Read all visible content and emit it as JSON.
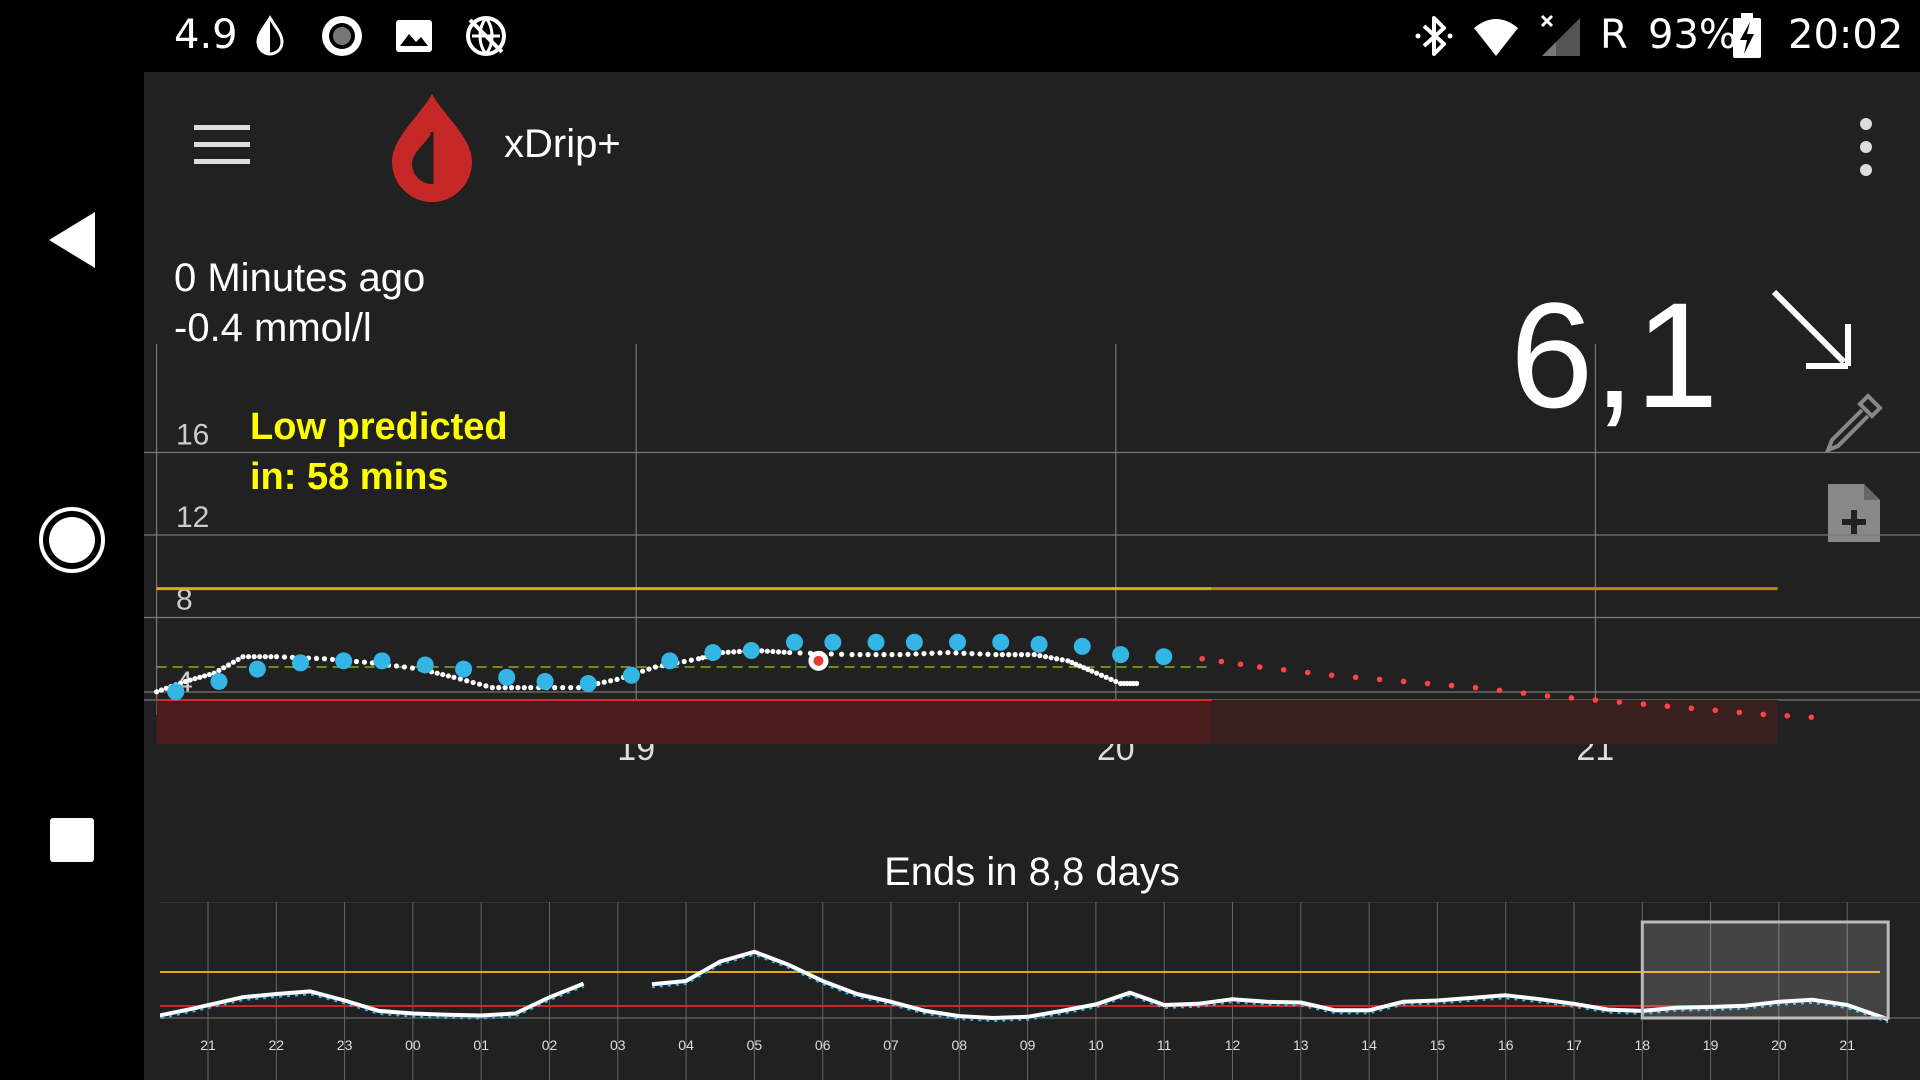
{
  "status_bar": {
    "left_value": "4.9",
    "carrier": "R",
    "battery": "93%",
    "time": "20:02",
    "icons_left": [
      "drop-half-icon",
      "record-circle-icon",
      "image-icon",
      "no-sync-icon"
    ],
    "icons_right": [
      "bluetooth-icon",
      "wifi-icon",
      "signal-icon",
      "battery-charging-icon"
    ]
  },
  "app": {
    "title": "xDrip+",
    "minutes_ago": "0 Minutes ago",
    "delta": "-0.4 mmol/l",
    "bg_value": "6,1",
    "trend": "falling",
    "low_predicted": "Low predicted\nin: 58 mins",
    "sensor_status": "Ends in 8,8 days"
  },
  "colors": {
    "background": "#212121",
    "high_line": "#e8a317",
    "low_band": "#3b1a1a",
    "bg_dots": "#33b5e5",
    "raw_dots": "#ffffff",
    "prediction": "#ff4444",
    "target_line": "#6b8e23",
    "warning_text": "#ffff00",
    "logo_red": "#c62828"
  },
  "chart_data": [
    {
      "type": "scatter",
      "name": "main-bg-chart",
      "y_ticks": [
        "16",
        "12",
        "8",
        "4"
      ],
      "x_ticks": [
        "19",
        "20",
        "21"
      ],
      "ylim": [
        2.3,
        19.5
      ],
      "xlim": [
        18.03,
        21.56
      ],
      "high_line": 9.4,
      "low_line": 4.0,
      "target_line": 5.6,
      "grid": true,
      "series": [
        {
          "kind": "bg",
          "x": [
            18.04,
            18.13,
            18.21,
            18.3,
            18.39,
            18.47,
            18.56,
            18.64,
            18.73,
            18.81,
            18.9,
            18.99,
            19.07,
            19.16,
            19.24,
            19.33,
            19.41,
            19.5,
            19.58,
            19.67,
            19.76,
            19.84,
            19.93,
            20.01,
            20.1
          ],
          "y": [
            4.4,
            4.9,
            5.5,
            5.8,
            5.9,
            5.9,
            5.7,
            5.5,
            5.1,
            4.9,
            4.8,
            5.2,
            5.9,
            6.3,
            6.4,
            6.8,
            6.8,
            6.8,
            6.8,
            6.8,
            6.8,
            6.7,
            6.6,
            6.2,
            6.1
          ]
        },
        {
          "kind": "calibration",
          "x": [
            19.38
          ],
          "y": [
            5.9
          ]
        },
        {
          "kind": "raw",
          "x": [
            18.0,
            18.06,
            18.12,
            18.18,
            18.25,
            18.35,
            18.45,
            18.55,
            18.62,
            18.7,
            18.78,
            18.88,
            18.96,
            19.04,
            19.13,
            19.18,
            19.25,
            19.32,
            19.45,
            19.55,
            19.65,
            19.75,
            19.83,
            19.9,
            19.95,
            20.01,
            20.05
          ],
          "y": [
            4.4,
            4.9,
            5.3,
            6.1,
            6.1,
            6.0,
            5.8,
            5.5,
            5.1,
            4.6,
            4.6,
            4.6,
            5.0,
            5.6,
            6.0,
            6.3,
            6.4,
            6.3,
            6.2,
            6.2,
            6.3,
            6.2,
            6.2,
            5.9,
            5.4,
            4.8,
            4.8
          ]
        },
        {
          "kind": "prediction",
          "x": [
            20.18,
            20.3,
            20.45,
            20.6,
            20.75,
            20.9,
            21.05,
            21.2,
            21.35,
            21.5
          ],
          "y": [
            6.0,
            5.6,
            5.2,
            4.9,
            4.6,
            4.2,
            3.9,
            3.6,
            3.3,
            3.1
          ]
        }
      ]
    },
    {
      "type": "line",
      "name": "overview-chart",
      "x_ticks": [
        "21",
        "22",
        "23",
        "00",
        "01",
        "02",
        "03",
        "04",
        "05",
        "06",
        "07",
        "08",
        "09",
        "10",
        "11",
        "12",
        "13",
        "14",
        "15",
        "16",
        "17",
        "18",
        "19",
        "20",
        "21"
      ],
      "xlim": [
        20.2,
        45.7
      ],
      "ylim": [
        2.3,
        19.5
      ],
      "high_line": 9.4,
      "low_line": 4.0,
      "viewport": [
        42.0,
        45.6
      ],
      "series": [
        {
          "kind": "bg",
          "x": [
            20.2,
            20.8,
            21.5,
            22.0,
            22.5,
            23.0,
            23.5,
            24.0,
            24.5,
            25.0,
            25.5,
            26.0,
            26.5,
            27.0,
            27.3,
            27.5,
            28.0,
            28.5,
            29.0,
            29.5,
            30.0,
            30.5,
            31.0,
            31.5,
            32.0,
            32.5,
            33.0,
            33.5,
            34.0,
            34.5,
            35.0,
            35.5,
            36.0,
            36.5,
            37.0,
            37.5,
            38.0,
            38.5,
            39.0,
            39.5,
            40.0,
            40.5,
            41.0,
            41.5,
            42.0,
            42.5,
            43.0,
            43.5,
            44.0,
            44.5,
            45.0,
            45.6
          ],
          "y": [
            3.5,
            4.8,
            6.5,
            7.0,
            7.4,
            6.0,
            4.4,
            4.0,
            3.8,
            3.7,
            4.0,
            6.5,
            8.6,
            null,
            null,
            8.5,
            9.0,
            12.0,
            13.5,
            11.5,
            9.0,
            7.0,
            5.8,
            4.4,
            3.6,
            3.3,
            3.5,
            4.4,
            5.4,
            7.2,
            5.3,
            5.5,
            6.2,
            5.8,
            5.7,
            4.5,
            4.5,
            5.8,
            6.0,
            6.4,
            6.8,
            6.2,
            5.5,
            4.6,
            4.4,
            4.9,
            5.0,
            5.2,
            5.8,
            6.1,
            5.3,
            3.1
          ]
        }
      ]
    }
  ]
}
